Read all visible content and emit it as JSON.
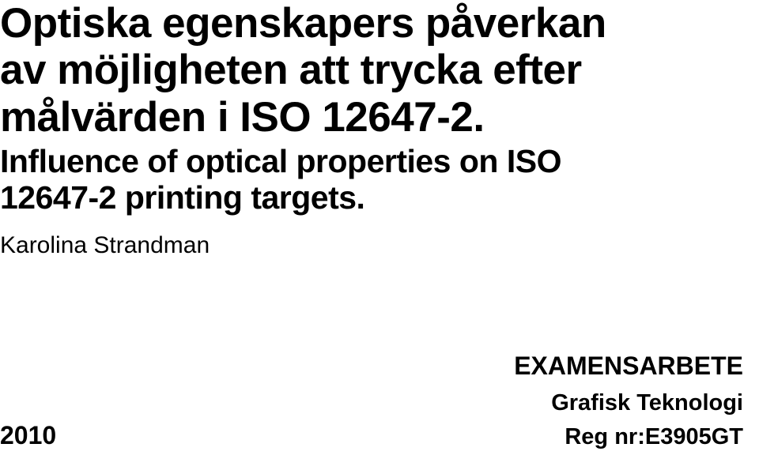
{
  "title_sv_line1": "Optiska egenskapers påverkan",
  "title_sv_line2": "av möjligheten att trycka efter",
  "title_sv_line3": "målvärden i ISO 12647-2.",
  "title_en_line1": "Influence of optical properties on ISO",
  "title_en_line2": "12647-2 printing targets.",
  "author": "Karolina Strandman",
  "year": "2010",
  "examens": "EXAMENSARBETE",
  "subject": "Grafisk Teknologi",
  "regnr": "Reg nr:E3905GT"
}
